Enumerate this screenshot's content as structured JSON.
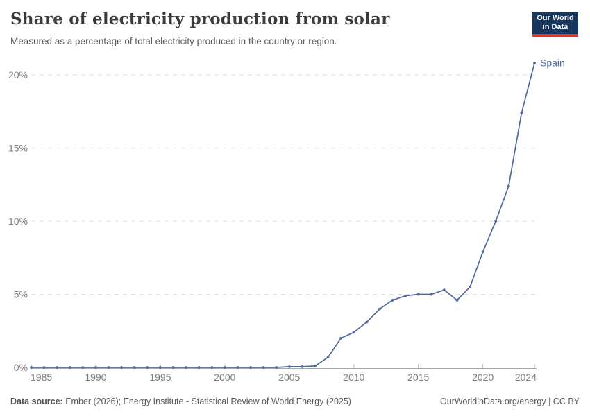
{
  "header": {
    "title": "Share of electricity production from solar",
    "subtitle": "Measured as a percentage of total electricity produced in the country or region.",
    "logo": {
      "line1": "Our World",
      "line2": "in Data"
    }
  },
  "chart_data": {
    "type": "line",
    "title": "Share of electricity production from solar",
    "xlabel": "",
    "ylabel": "",
    "xlim": [
      1985,
      2024
    ],
    "ylim": [
      0,
      20
    ],
    "grid": "horizontal-dashed",
    "legend_position": "end-of-line-label",
    "x_ticks": [
      1985,
      1990,
      1995,
      2000,
      2005,
      2010,
      2015,
      2020,
      2024
    ],
    "y_ticks": [
      0,
      5,
      10,
      15,
      20
    ],
    "y_tick_suffix": "%",
    "x": [
      1985,
      1986,
      1987,
      1988,
      1989,
      1990,
      1991,
      1992,
      1993,
      1994,
      1995,
      1996,
      1997,
      1998,
      1999,
      2000,
      2001,
      2002,
      2003,
      2004,
      2005,
      2006,
      2007,
      2008,
      2009,
      2010,
      2011,
      2012,
      2013,
      2014,
      2015,
      2016,
      2017,
      2018,
      2019,
      2020,
      2021,
      2022,
      2023,
      2024
    ],
    "series": [
      {
        "name": "Spain",
        "color": "#4c6a9c",
        "values": [
          0,
          0,
          0,
          0,
          0,
          0,
          0,
          0,
          0,
          0,
          0,
          0,
          0,
          0,
          0,
          0,
          0,
          0,
          0,
          0,
          0.05,
          0.05,
          0.1,
          0.7,
          2.0,
          2.4,
          3.1,
          4.0,
          4.6,
          4.9,
          5.0,
          5.0,
          5.3,
          4.6,
          5.5,
          7.9,
          10.0,
          12.4,
          17.4,
          20.8
        ]
      }
    ]
  },
  "colors": {
    "accent_line": "#4c6a9c",
    "grid": "#dedede",
    "axis": "#a8a8a8",
    "tick_label": "#7d7d7d"
  },
  "footer": {
    "source_label": "Data source:",
    "source_text": " Ember (2026); Energy Institute - Statistical Review of World Energy (2025)",
    "right_text": "OurWorldinData.org/energy | CC BY"
  }
}
